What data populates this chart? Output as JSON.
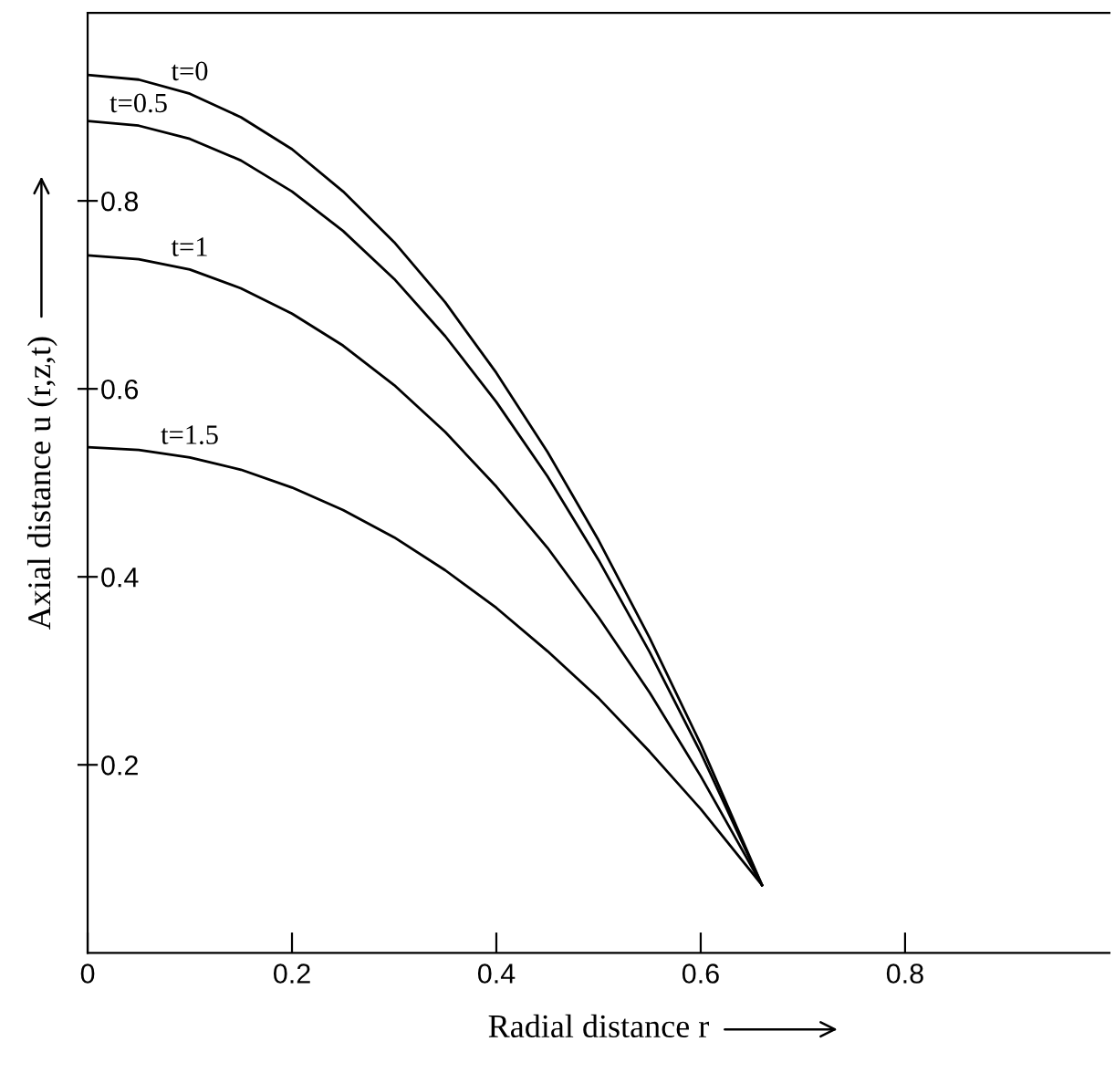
{
  "chart_data": {
    "type": "line",
    "xlabel": "Radial distance r",
    "ylabel": "Axial distance u (r,z,t)",
    "x": [
      0,
      0.05,
      0.1,
      0.15,
      0.2,
      0.25,
      0.3,
      0.35,
      0.4,
      0.45,
      0.5,
      0.55,
      0.6,
      0.66
    ],
    "series": [
      {
        "name": "t=0",
        "color": "#000000",
        "values": [
          0.934,
          0.929,
          0.914,
          0.889,
          0.855,
          0.81,
          0.756,
          0.692,
          0.617,
          0.533,
          0.439,
          0.335,
          0.222,
          0.072
        ]
      },
      {
        "name": "t=0.5",
        "color": "#000000",
        "values": [
          0.885,
          0.88,
          0.866,
          0.843,
          0.81,
          0.768,
          0.717,
          0.656,
          0.586,
          0.507,
          0.418,
          0.32,
          0.213,
          0.072
        ]
      },
      {
        "name": "t=1",
        "color": "#000000",
        "values": [
          0.742,
          0.738,
          0.727,
          0.707,
          0.68,
          0.646,
          0.604,
          0.554,
          0.496,
          0.431,
          0.357,
          0.277,
          0.188,
          0.072
        ]
      },
      {
        "name": "t=1.5",
        "color": "#000000",
        "values": [
          0.538,
          0.535,
          0.527,
          0.514,
          0.495,
          0.471,
          0.442,
          0.407,
          0.367,
          0.321,
          0.271,
          0.214,
          0.153,
          0.072
        ]
      }
    ],
    "xlim": [
      0,
      1
    ],
    "ylim": [
      0,
      1
    ],
    "xticks": [
      0,
      0.2,
      0.4,
      0.6,
      0.8
    ],
    "yticks": [
      {
        "value": 0.2,
        "label": "0.2"
      },
      {
        "value": 0.4,
        "label": "0.4"
      },
      {
        "value": 0.6,
        "label": "0.6"
      },
      {
        "value": 0.8,
        "label": "0.8"
      }
    ],
    "grid": false,
    "legend": false,
    "marker": "none",
    "line_style": "solid"
  }
}
